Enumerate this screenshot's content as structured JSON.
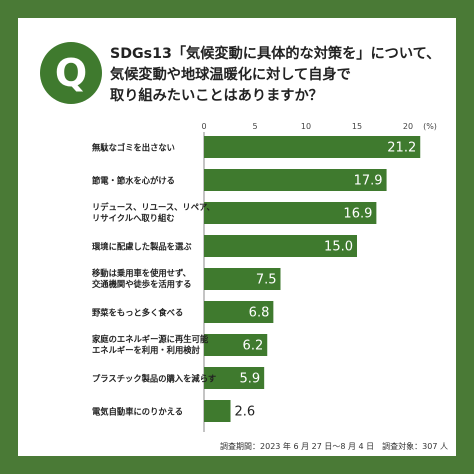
{
  "q_badge": "Q",
  "question": {
    "line1": "SDGs13「気候変動に具体的な対策を」について、",
    "line2": "気候変動や地球温暖化に対して自身で",
    "line3": "取り組みたいことはありますか？"
  },
  "footer": "調査期間：2023 年 6 月 27 日～8 月 4 日　調査対象：307 人",
  "colors": {
    "background": "#4a7a36",
    "bar": "#3f7a2e",
    "badge": "#3f7a2e"
  },
  "chart_data": {
    "type": "bar",
    "orientation": "horizontal",
    "unit": "(%)",
    "xlim": [
      0,
      20
    ],
    "ticks": [
      "0",
      "5",
      "10",
      "15",
      "20"
    ],
    "grid": false,
    "categories": [
      [
        "無駄なゴミを出さない"
      ],
      [
        "節電・節水を心がける"
      ],
      [
        "リデュース、リユース、リペア、",
        "リサイクルへ取り組む"
      ],
      [
        "環境に配慮した製品を選ぶ"
      ],
      [
        "移動は乗用車を使用せず、",
        "交通機関や徒歩を活用する"
      ],
      [
        "野菜をもっと多く食べる"
      ],
      [
        "家庭のエネルギー源に再生可能",
        "エネルギーを利用・利用検討"
      ],
      [
        "プラスチック製品の購入を減らす"
      ],
      [
        "電気自動車にのりかえる"
      ]
    ],
    "values": [
      21.2,
      17.9,
      16.9,
      15.0,
      7.5,
      6.8,
      6.2,
      5.9,
      2.6
    ],
    "value_labels": [
      "21.2",
      "17.9",
      "16.9",
      "15.0",
      "7.5",
      "6.8",
      "6.2",
      "5.9",
      "2.6"
    ]
  }
}
